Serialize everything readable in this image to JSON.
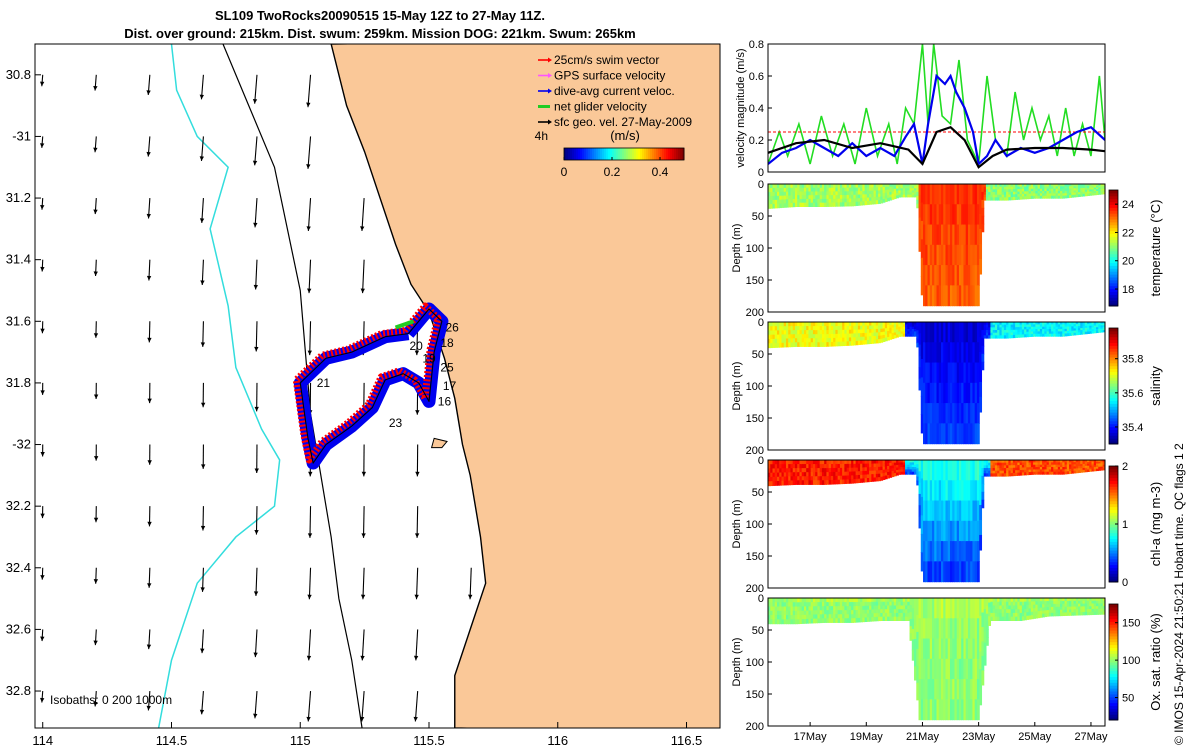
{
  "title": {
    "line1": "SL109 TwoRocks20090515 15-May 12Z to 27-May 11Z.",
    "line2": "Dist. over ground: 215km. Dist. swum: 259km. Mission DOG: 221km. Swum: 265km"
  },
  "credit": "© IMOS 15-Apr-2024 21:50:21 Hobart time. QC flags 1  2",
  "isobaths_label": "Isobaths: 0   200  1000m",
  "colors": {
    "land": "#FAC898",
    "coast": "#000000",
    "isobath_200": "#000000",
    "isobath_1000": "#33DDDD",
    "track_red": "#FF0000",
    "track_blue": "#0000EE",
    "net_green": "#22CC22",
    "mag_gps": "#FF55FF",
    "mag_swim": "#FF0000"
  },
  "chart_data": [
    {
      "type": "map-vectors",
      "name": "glider track map",
      "xlim": [
        113.97,
        116.63
      ],
      "ylim": [
        -32.92,
        -30.7
      ],
      "x_ticks": [
        {
          "v": 114,
          "label": "114"
        },
        {
          "v": 114.5,
          "label": "114.5"
        },
        {
          "v": 115,
          "label": "115"
        },
        {
          "v": 115.5,
          "label": "115.5"
        },
        {
          "v": 116,
          "label": "116"
        },
        {
          "v": 116.5,
          "label": "116.5"
        }
      ],
      "y_ticks": [
        {
          "v": -30.8,
          "label": "30.8"
        },
        {
          "v": -31,
          "label": "-31"
        },
        {
          "v": -31.2,
          "label": "31.2"
        },
        {
          "v": -31.4,
          "label": "31.4"
        },
        {
          "v": -31.6,
          "label": "31.6"
        },
        {
          "v": -31.8,
          "label": "31.8"
        },
        {
          "v": -32,
          "label": "-32"
        },
        {
          "v": -32.2,
          "label": "32.2"
        },
        {
          "v": -32.4,
          "label": "32.4"
        },
        {
          "v": -32.6,
          "label": "32.6"
        },
        {
          "v": -32.8,
          "label": "32.8"
        }
      ],
      "coastline": [
        [
          115.12,
          -30.7
        ],
        [
          115.18,
          -30.9
        ],
        [
          115.25,
          -31.05
        ],
        [
          115.31,
          -31.2
        ],
        [
          115.37,
          -31.35
        ],
        [
          115.43,
          -31.48
        ],
        [
          115.5,
          -31.57
        ],
        [
          115.56,
          -31.72
        ],
        [
          115.6,
          -31.85
        ],
        [
          115.63,
          -32.0
        ],
        [
          115.66,
          -32.1
        ],
        [
          115.7,
          -32.3
        ],
        [
          115.72,
          -32.45
        ],
        [
          115.66,
          -32.6
        ],
        [
          115.6,
          -32.75
        ],
        [
          115.6,
          -32.92
        ]
      ],
      "isobath_200": [
        [
          114.7,
          -30.7
        ],
        [
          114.8,
          -30.9
        ],
        [
          114.9,
          -31.1
        ],
        [
          114.95,
          -31.3
        ],
        [
          115.0,
          -31.5
        ],
        [
          115.02,
          -31.7
        ],
        [
          115.04,
          -31.9
        ],
        [
          115.08,
          -32.1
        ],
        [
          115.12,
          -32.3
        ],
        [
          115.15,
          -32.5
        ],
        [
          115.2,
          -32.7
        ],
        [
          115.24,
          -32.92
        ]
      ],
      "isobath_1000": [
        [
          114.5,
          -30.7
        ],
        [
          114.52,
          -30.85
        ],
        [
          114.6,
          -31.0
        ],
        [
          114.72,
          -31.1
        ],
        [
          114.65,
          -31.3
        ],
        [
          114.72,
          -31.55
        ],
        [
          114.75,
          -31.75
        ],
        [
          114.85,
          -31.95
        ],
        [
          114.92,
          -32.05
        ],
        [
          114.9,
          -32.2
        ],
        [
          114.75,
          -32.3
        ],
        [
          114.6,
          -32.45
        ],
        [
          114.5,
          -32.7
        ],
        [
          114.45,
          -32.92
        ]
      ],
      "islands": [
        [
          115.52,
          -31.98
        ],
        [
          115.57,
          -31.99
        ],
        [
          115.55,
          -32.01
        ],
        [
          115.51,
          -32.01
        ]
      ],
      "track": [
        [
          115.42,
          -31.64
        ],
        [
          115.5,
          -31.56
        ],
        [
          115.55,
          -31.6
        ],
        [
          115.52,
          -31.7
        ],
        [
          115.5,
          -31.86
        ],
        [
          115.46,
          -31.8
        ],
        [
          115.4,
          -31.77
        ],
        [
          115.33,
          -31.79
        ],
        [
          115.28,
          -31.88
        ],
        [
          115.2,
          -31.94
        ],
        [
          115.1,
          -32.0
        ],
        [
          115.05,
          -32.06
        ],
        [
          115.03,
          -31.98
        ],
        [
          115.0,
          -31.8
        ],
        [
          115.1,
          -31.72
        ],
        [
          115.2,
          -31.7
        ],
        [
          115.33,
          -31.65
        ],
        [
          115.42,
          -31.64
        ]
      ],
      "labels": [
        {
          "t": "21",
          "x": 115.09,
          "y": -31.8
        },
        {
          "t": "20",
          "x": 115.45,
          "y": -31.68
        },
        {
          "t": "18",
          "x": 115.57,
          "y": -31.67
        },
        {
          "t": "26",
          "x": 115.59,
          "y": -31.62
        },
        {
          "t": "25",
          "x": 115.57,
          "y": -31.75
        },
        {
          "t": "17",
          "x": 115.58,
          "y": -31.81
        },
        {
          "t": "16",
          "x": 115.56,
          "y": -31.86
        },
        {
          "t": "23",
          "x": 115.37,
          "y": -31.93
        },
        {
          "t": "19",
          "x": 115.5,
          "y": -31.72
        }
      ],
      "legend": [
        {
          "label": "25cm/s swim vector",
          "color": "#FF0000",
          "style": "arrow"
        },
        {
          "label": "GPS surface velocity",
          "color": "#FF55FF",
          "style": "arrow"
        },
        {
          "label": "dive-avg current veloc.",
          "color": "#0000EE",
          "style": "arrow"
        },
        {
          "label": "net glider velocity",
          "color": "#22CC22",
          "style": "line"
        },
        {
          "label": "sfc geo. vel. 27-May-2009",
          "color": "#000000",
          "style": "arrow"
        }
      ],
      "legend_note": "4h",
      "colorbar": {
        "title": "(m/s)",
        "ticks": [
          "0",
          "0.2",
          "0.4"
        ],
        "tick_values": [
          0,
          0.2,
          0.4
        ],
        "range": [
          0,
          0.5
        ]
      }
    },
    {
      "type": "line",
      "name": "velocity magnitude",
      "ylabel": "velocity magnitude (m/s)",
      "ylim": [
        0,
        0.8
      ],
      "y_ticks": [
        0,
        0.2,
        0.4,
        0.6,
        0.8
      ],
      "y_tick_labels": [
        "0",
        "0.2",
        "0.4",
        "0.6",
        "0.8"
      ],
      "xlim": [
        15.5,
        27.5
      ],
      "series": [
        {
          "name": "swim speed (red)",
          "x": [
            15.5,
            27.5
          ],
          "y": [
            0.25,
            0.25
          ]
        },
        {
          "name": "dive-avg current (blue)",
          "x": [
            15.5,
            16.0,
            16.5,
            17.0,
            17.5,
            18.0,
            18.5,
            19.0,
            19.5,
            20.0,
            20.4,
            20.7,
            21.0,
            21.2,
            21.5,
            21.8,
            22.0,
            22.2,
            22.5,
            22.8,
            23.0,
            23.3,
            23.6,
            24.0,
            24.5,
            25.0,
            25.5,
            26.0,
            26.5,
            27.0,
            27.5
          ],
          "y": [
            0.05,
            0.12,
            0.15,
            0.2,
            0.15,
            0.1,
            0.18,
            0.1,
            0.15,
            0.1,
            0.22,
            0.3,
            0.05,
            0.3,
            0.6,
            0.55,
            0.6,
            0.5,
            0.4,
            0.25,
            0.05,
            0.1,
            0.2,
            0.1,
            0.15,
            0.12,
            0.15,
            0.2,
            0.25,
            0.28,
            0.2
          ]
        },
        {
          "name": "sfc geo. vel. (black)",
          "x": [
            15.5,
            16.5,
            17.5,
            18.5,
            19.5,
            20.5,
            21.0,
            21.5,
            22.0,
            22.5,
            23.0,
            23.5,
            24.0,
            25.0,
            26.0,
            27.0,
            27.5
          ],
          "y": [
            0.12,
            0.18,
            0.2,
            0.15,
            0.18,
            0.14,
            0.05,
            0.25,
            0.28,
            0.2,
            0.03,
            0.1,
            0.14,
            0.15,
            0.15,
            0.14,
            0.13
          ]
        },
        {
          "name": "net glider velocity (green)",
          "x": [
            15.5,
            15.9,
            16.2,
            16.6,
            17.0,
            17.4,
            17.8,
            18.2,
            18.6,
            19.0,
            19.4,
            19.8,
            20.1,
            20.4,
            20.7,
            21.0,
            21.2,
            21.4,
            21.7,
            22.0,
            22.3,
            22.6,
            23.0,
            23.3,
            23.6,
            24.0,
            24.3,
            24.6,
            24.9,
            25.2,
            25.5,
            25.8,
            26.1,
            26.4,
            26.7,
            27.0,
            27.3,
            27.5
          ],
          "y": [
            0.05,
            0.25,
            0.1,
            0.3,
            0.05,
            0.35,
            0.1,
            0.3,
            0.05,
            0.4,
            0.1,
            0.3,
            0.05,
            0.4,
            0.3,
            0.8,
            0.3,
            0.8,
            0.35,
            0.3,
            0.7,
            0.2,
            0.05,
            0.6,
            0.2,
            0.1,
            0.5,
            0.2,
            0.4,
            0.2,
            0.35,
            0.1,
            0.4,
            0.1,
            0.3,
            0.1,
            0.6,
            0.2
          ]
        }
      ]
    },
    {
      "type": "heatmap",
      "name": "temperature",
      "ylabel": "Depth (m)",
      "clabel": "temperature (°C)",
      "ylim": [
        200,
        0
      ],
      "y_ticks": [
        {
          "v": 0,
          "label": "0"
        },
        {
          "v": 50,
          "label": "50"
        },
        {
          "v": 100,
          "label": "100"
        },
        {
          "v": 150,
          "label": "150"
        },
        {
          "v": 200,
          "label": "200"
        }
      ],
      "c_ticks": [
        {
          "v": 18,
          "label": "18"
        },
        {
          "v": 20,
          "label": "20"
        },
        {
          "v": 22,
          "label": "22"
        },
        {
          "v": 24,
          "label": "24"
        }
      ],
      "crange": [
        16.8,
        25
      ],
      "shelf_depth": [
        [
          15.5,
          38
        ],
        [
          16.5,
          35
        ],
        [
          17.5,
          35
        ],
        [
          18.5,
          34
        ],
        [
          19.5,
          30
        ],
        [
          20.2,
          20
        ],
        [
          20.8,
          20
        ],
        [
          21.0,
          190
        ],
        [
          23.0,
          190
        ],
        [
          23.2,
          25
        ],
        [
          24.0,
          25
        ],
        [
          25.0,
          22
        ],
        [
          26.0,
          22
        ],
        [
          27.5,
          15
        ]
      ],
      "regimes": [
        {
          "from": 15.5,
          "to": 20.8,
          "value": 21.2
        },
        {
          "from": 20.8,
          "to": 23.2,
          "value": 23.6
        },
        {
          "from": 23.2,
          "to": 27.5,
          "value": 21.0
        }
      ]
    },
    {
      "type": "heatmap",
      "name": "salinity",
      "ylabel": "Depth (m)",
      "clabel": "salinity",
      "ylim": [
        200,
        0
      ],
      "y_ticks": [
        {
          "v": 0,
          "label": "0"
        },
        {
          "v": 50,
          "label": "50"
        },
        {
          "v": 100,
          "label": "100"
        },
        {
          "v": 150,
          "label": "150"
        },
        {
          "v": 200,
          "label": "200"
        }
      ],
      "c_ticks": [
        {
          "v": 35.4,
          "label": "35.4"
        },
        {
          "v": 35.6,
          "label": "35.6"
        },
        {
          "v": 35.8,
          "label": "35.8"
        }
      ],
      "crange": [
        35.3,
        35.98
      ],
      "shelf_depth": [
        [
          15.5,
          40
        ],
        [
          16.5,
          38
        ],
        [
          17.5,
          38
        ],
        [
          18.5,
          36
        ],
        [
          19.5,
          32
        ],
        [
          20.2,
          22
        ],
        [
          20.8,
          22
        ],
        [
          21.0,
          190
        ],
        [
          23.0,
          190
        ],
        [
          23.2,
          25
        ],
        [
          24.0,
          25
        ],
        [
          25.0,
          22
        ],
        [
          26.0,
          22
        ],
        [
          27.5,
          15
        ]
      ],
      "regimes": [
        {
          "from": 15.5,
          "to": 20.3,
          "value": 35.72
        },
        {
          "from": 20.3,
          "to": 23.4,
          "value": 35.36
        },
        {
          "from": 23.4,
          "to": 27.5,
          "value": 35.55
        }
      ]
    },
    {
      "type": "heatmap",
      "name": "chl-a",
      "ylabel": "Depth (m)",
      "clabel": "chl-a (mg m-3)",
      "ylim": [
        200,
        0
      ],
      "y_ticks": [
        {
          "v": 0,
          "label": "0"
        },
        {
          "v": 50,
          "label": "50"
        },
        {
          "v": 100,
          "label": "100"
        },
        {
          "v": 150,
          "label": "150"
        },
        {
          "v": 200,
          "label": "200"
        }
      ],
      "c_ticks": [
        {
          "v": 0,
          "label": "0"
        },
        {
          "v": 1,
          "label": "1"
        },
        {
          "v": 2,
          "label": "2"
        }
      ],
      "crange": [
        0,
        2
      ],
      "shelf_depth": [
        [
          15.5,
          40
        ],
        [
          16.5,
          38
        ],
        [
          17.5,
          38
        ],
        [
          18.5,
          36
        ],
        [
          19.5,
          32
        ],
        [
          20.2,
          22
        ],
        [
          20.8,
          22
        ],
        [
          21.0,
          190
        ],
        [
          23.0,
          190
        ],
        [
          23.2,
          25
        ],
        [
          24.0,
          25
        ],
        [
          25.0,
          22
        ],
        [
          26.0,
          22
        ],
        [
          27.5,
          15
        ]
      ],
      "regimes": [
        {
          "from": 15.5,
          "to": 20.3,
          "value": 1.7
        },
        {
          "from": 20.3,
          "to": 23.4,
          "value": 0.55
        },
        {
          "from": 23.4,
          "to": 27.5,
          "value": 1.6
        }
      ]
    },
    {
      "type": "heatmap",
      "name": "oxygen saturation",
      "ylabel": "Depth (m)",
      "clabel": "Ox. sat. ratio (%)",
      "ylim": [
        200,
        0
      ],
      "y_ticks": [
        {
          "v": 0,
          "label": "0"
        },
        {
          "v": 50,
          "label": "50"
        },
        {
          "v": 100,
          "label": "100"
        },
        {
          "v": 150,
          "label": "150"
        },
        {
          "v": 200,
          "label": "200"
        }
      ],
      "c_ticks": [
        {
          "v": 50,
          "label": "50"
        },
        {
          "v": 100,
          "label": "100"
        },
        {
          "v": 150,
          "label": "150"
        }
      ],
      "crange": [
        20,
        175
      ],
      "x_ticks": [
        {
          "v": 17,
          "label": "17May"
        },
        {
          "v": 19,
          "label": "19May"
        },
        {
          "v": 21,
          "label": "21May"
        },
        {
          "v": 23,
          "label": "23May"
        },
        {
          "v": 25,
          "label": "25May"
        },
        {
          "v": 27,
          "label": "27May"
        }
      ],
      "shelf_depth": [
        [
          15.5,
          40
        ],
        [
          16.5,
          40
        ],
        [
          17.5,
          38
        ],
        [
          18.5,
          38
        ],
        [
          19.5,
          35
        ],
        [
          20.5,
          35
        ],
        [
          20.9,
          190
        ],
        [
          23.0,
          190
        ],
        [
          23.4,
          35
        ],
        [
          24.5,
          35
        ],
        [
          25.5,
          28
        ],
        [
          27.5,
          25
        ]
      ],
      "regimes": [
        {
          "from": 15.5,
          "to": 27.5,
          "value": 100
        }
      ]
    }
  ]
}
